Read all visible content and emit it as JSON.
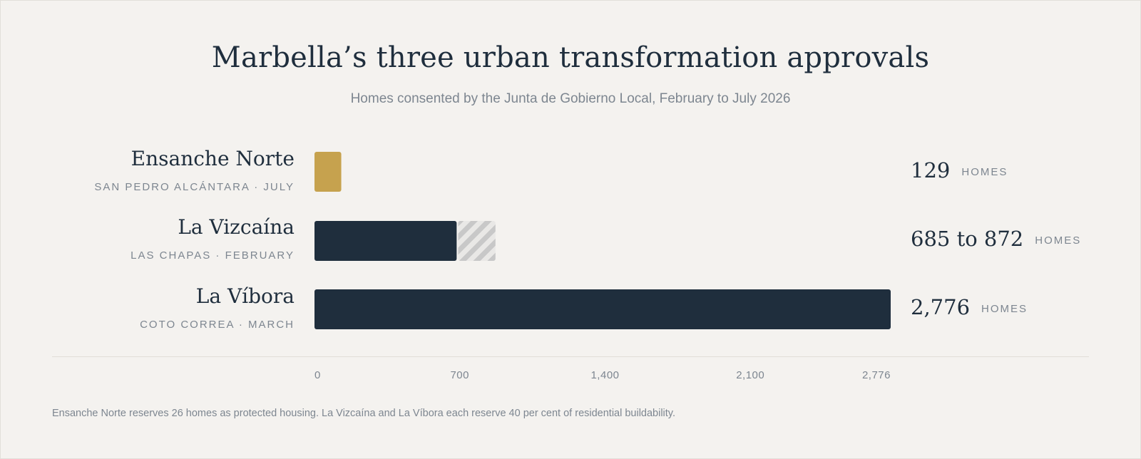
{
  "chart_data": {
    "type": "bar",
    "orientation": "horizontal",
    "title": "Marbella’s three urban transformation approvals",
    "subtitle": "Homes consented by the Junta de Gobierno Local, February to July 2026",
    "unit_label": "HOMES",
    "xlim": [
      0,
      2776
    ],
    "ticks": [
      {
        "value": 0,
        "label": "0"
      },
      {
        "value": 700,
        "label": "700"
      },
      {
        "value": 1400,
        "label": "1,400"
      },
      {
        "value": 2100,
        "label": "2,100"
      },
      {
        "value": 2776,
        "label": "2,776"
      }
    ],
    "rows": [
      {
        "name": "Ensanche Norte",
        "sub": "SAN PEDRO ALCÁNTARA · JULY",
        "value": 129,
        "range_max": null,
        "value_label": "129",
        "color": "#c6a24e"
      },
      {
        "name": "La Vizcaína",
        "sub": "LAS CHAPAS · FEBRUARY",
        "value": 685,
        "range_max": 872,
        "value_label": "685 to 872",
        "color": "#1f2e3d"
      },
      {
        "name": "La Víbora",
        "sub": "COTO CORREA · MARCH",
        "value": 2776,
        "range_max": null,
        "value_label": "2,776",
        "color": "#1f2e3d"
      }
    ],
    "colors": {
      "range_hatch": "#c8c8c8",
      "background": "#f4f2ef"
    },
    "footnote": "Ensanche Norte reserves 26 homes as protected housing. La Vizcaína and La Víbora each reserve 40 per cent of residential buildability."
  }
}
